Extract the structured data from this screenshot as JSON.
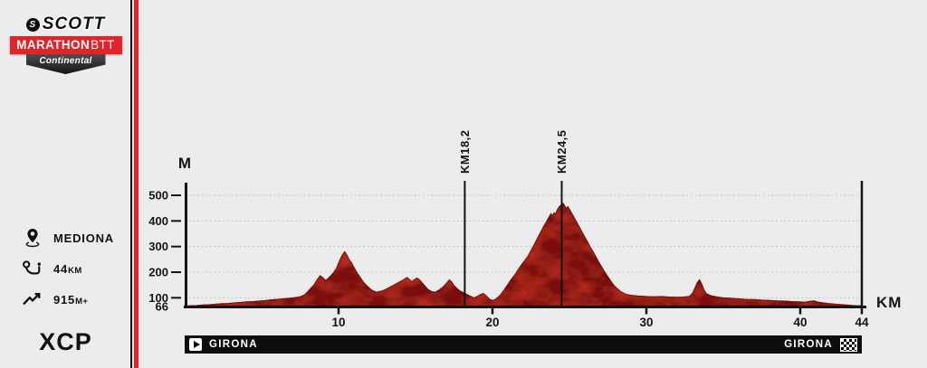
{
  "app": {
    "background": "#ececec",
    "accent_red": "#e0252a"
  },
  "sidebar": {
    "logo": {
      "brand": "SCOTT",
      "brand_initial": "S",
      "series_title": "MARATHON",
      "series_suffix": "BTT",
      "sponsor": "Continental"
    },
    "stats": {
      "location": {
        "label": "MEDIONA"
      },
      "distance": {
        "value": "44",
        "unit": "KM"
      },
      "elevation_gain": {
        "value": "915",
        "unit": "M+"
      }
    },
    "category": "XCP"
  },
  "chart_data": {
    "type": "area",
    "title": "",
    "xlabel": "KM",
    "ylabel": "M",
    "xlim": [
      0,
      44
    ],
    "ylim": [
      66,
      500
    ],
    "x_ticks": [
      10,
      20,
      30,
      40,
      44
    ],
    "y_ticks": [
      66,
      100,
      200,
      300,
      400,
      500
    ],
    "grid": "horizontal-dotted",
    "legend": "none",
    "profile_color": "#b32a20",
    "profile_shadow_color": "#6f120c",
    "markers": [
      {
        "km": 18.2,
        "label": "KM18,2"
      },
      {
        "km": 24.5,
        "label": "KM24,5"
      }
    ],
    "end_line_km": 44,
    "profile": [
      [
        0,
        67
      ],
      [
        0.4,
        69
      ],
      [
        0.8,
        70
      ],
      [
        1.2,
        72
      ],
      [
        1.6,
        73
      ],
      [
        2.0,
        75
      ],
      [
        2.4,
        77
      ],
      [
        2.8,
        78
      ],
      [
        3.2,
        80
      ],
      [
        3.6,
        82
      ],
      [
        4.0,
        84
      ],
      [
        4.4,
        85
      ],
      [
        4.8,
        87
      ],
      [
        5.2,
        89
      ],
      [
        5.6,
        92
      ],
      [
        6.0,
        94
      ],
      [
        6.4,
        96
      ],
      [
        6.8,
        98
      ],
      [
        7.2,
        101
      ],
      [
        7.5,
        104
      ],
      [
        7.8,
        112
      ],
      [
        8.0,
        124
      ],
      [
        8.2,
        138
      ],
      [
        8.4,
        150
      ],
      [
        8.6,
        170
      ],
      [
        8.8,
        186
      ],
      [
        9.0,
        177
      ],
      [
        9.15,
        168
      ],
      [
        9.3,
        174
      ],
      [
        9.5,
        186
      ],
      [
        9.7,
        200
      ],
      [
        9.85,
        214
      ],
      [
        10.0,
        235
      ],
      [
        10.15,
        256
      ],
      [
        10.3,
        272
      ],
      [
        10.4,
        280
      ],
      [
        10.55,
        266
      ],
      [
        10.7,
        248
      ],
      [
        10.85,
        236
      ],
      [
        11.0,
        218
      ],
      [
        11.2,
        198
      ],
      [
        11.4,
        180
      ],
      [
        11.6,
        162
      ],
      [
        11.8,
        149
      ],
      [
        12.0,
        138
      ],
      [
        12.2,
        128
      ],
      [
        12.45,
        122
      ],
      [
        12.7,
        125
      ],
      [
        13.0,
        131
      ],
      [
        13.3,
        140
      ],
      [
        13.6,
        150
      ],
      [
        13.9,
        160
      ],
      [
        14.2,
        170
      ],
      [
        14.45,
        180
      ],
      [
        14.6,
        172
      ],
      [
        14.75,
        163
      ],
      [
        14.9,
        170
      ],
      [
        15.1,
        177
      ],
      [
        15.3,
        168
      ],
      [
        15.55,
        150
      ],
      [
        15.8,
        133
      ],
      [
        16.05,
        124
      ],
      [
        16.3,
        122
      ],
      [
        16.55,
        131
      ],
      [
        16.8,
        143
      ],
      [
        17.0,
        156
      ],
      [
        17.2,
        170
      ],
      [
        17.35,
        162
      ],
      [
        17.5,
        148
      ],
      [
        17.7,
        136
      ],
      [
        17.9,
        126
      ],
      [
        18.2,
        117
      ],
      [
        18.5,
        108
      ],
      [
        18.8,
        100
      ],
      [
        19.0,
        105
      ],
      [
        19.2,
        112
      ],
      [
        19.4,
        117
      ],
      [
        19.6,
        108
      ],
      [
        19.8,
        95
      ],
      [
        20.0,
        90
      ],
      [
        20.2,
        94
      ],
      [
        20.5,
        110
      ],
      [
        20.8,
        134
      ],
      [
        21.0,
        152
      ],
      [
        21.2,
        170
      ],
      [
        21.45,
        190
      ],
      [
        21.7,
        212
      ],
      [
        21.9,
        230
      ],
      [
        22.1,
        246
      ],
      [
        22.3,
        262
      ],
      [
        22.5,
        284
      ],
      [
        22.7,
        306
      ],
      [
        22.9,
        330
      ],
      [
        23.1,
        352
      ],
      [
        23.3,
        376
      ],
      [
        23.5,
        396
      ],
      [
        23.65,
        412
      ],
      [
        23.8,
        428
      ],
      [
        23.9,
        420
      ],
      [
        24.0,
        432
      ],
      [
        24.1,
        426
      ],
      [
        24.2,
        442
      ],
      [
        24.35,
        456
      ],
      [
        24.5,
        464
      ],
      [
        24.6,
        468
      ],
      [
        24.7,
        458
      ],
      [
        24.8,
        448
      ],
      [
        24.9,
        456
      ],
      [
        25.0,
        446
      ],
      [
        25.15,
        430
      ],
      [
        25.3,
        414
      ],
      [
        25.5,
        392
      ],
      [
        25.7,
        370
      ],
      [
        25.9,
        348
      ],
      [
        26.1,
        326
      ],
      [
        26.3,
        304
      ],
      [
        26.5,
        284
      ],
      [
        26.7,
        262
      ],
      [
        26.9,
        240
      ],
      [
        27.1,
        220
      ],
      [
        27.3,
        200
      ],
      [
        27.5,
        182
      ],
      [
        27.7,
        164
      ],
      [
        27.9,
        148
      ],
      [
        28.1,
        136
      ],
      [
        28.35,
        124
      ],
      [
        28.6,
        116
      ],
      [
        28.8,
        112
      ],
      [
        29.1,
        109
      ],
      [
        29.5,
        107
      ],
      [
        30.0,
        105
      ],
      [
        30.5,
        104
      ],
      [
        31.0,
        105
      ],
      [
        31.5,
        103
      ],
      [
        32.0,
        102
      ],
      [
        32.4,
        103
      ],
      [
        32.8,
        106
      ],
      [
        33.0,
        118
      ],
      [
        33.15,
        138
      ],
      [
        33.3,
        158
      ],
      [
        33.45,
        170
      ],
      [
        33.6,
        152
      ],
      [
        33.75,
        130
      ],
      [
        33.9,
        116
      ],
      [
        34.2,
        108
      ],
      [
        34.6,
        103
      ],
      [
        35.0,
        100
      ],
      [
        35.5,
        98
      ],
      [
        36.0,
        96
      ],
      [
        36.5,
        94
      ],
      [
        37.0,
        93
      ],
      [
        37.5,
        91
      ],
      [
        38.0,
        90
      ],
      [
        38.5,
        88
      ],
      [
        39.0,
        87
      ],
      [
        39.5,
        85
      ],
      [
        40.0,
        84
      ],
      [
        40.3,
        83
      ],
      [
        40.6,
        86
      ],
      [
        40.9,
        88
      ],
      [
        41.1,
        84
      ],
      [
        41.4,
        81
      ],
      [
        41.8,
        78
      ],
      [
        42.2,
        76
      ],
      [
        42.6,
        74
      ],
      [
        43.0,
        72
      ],
      [
        43.4,
        70
      ],
      [
        43.7,
        69
      ],
      [
        44,
        68
      ]
    ]
  },
  "route_bar": {
    "start_label": "GIRONA",
    "end_label": "GIRONA",
    "start_icon": "play",
    "end_icon": "checkered-flag"
  }
}
